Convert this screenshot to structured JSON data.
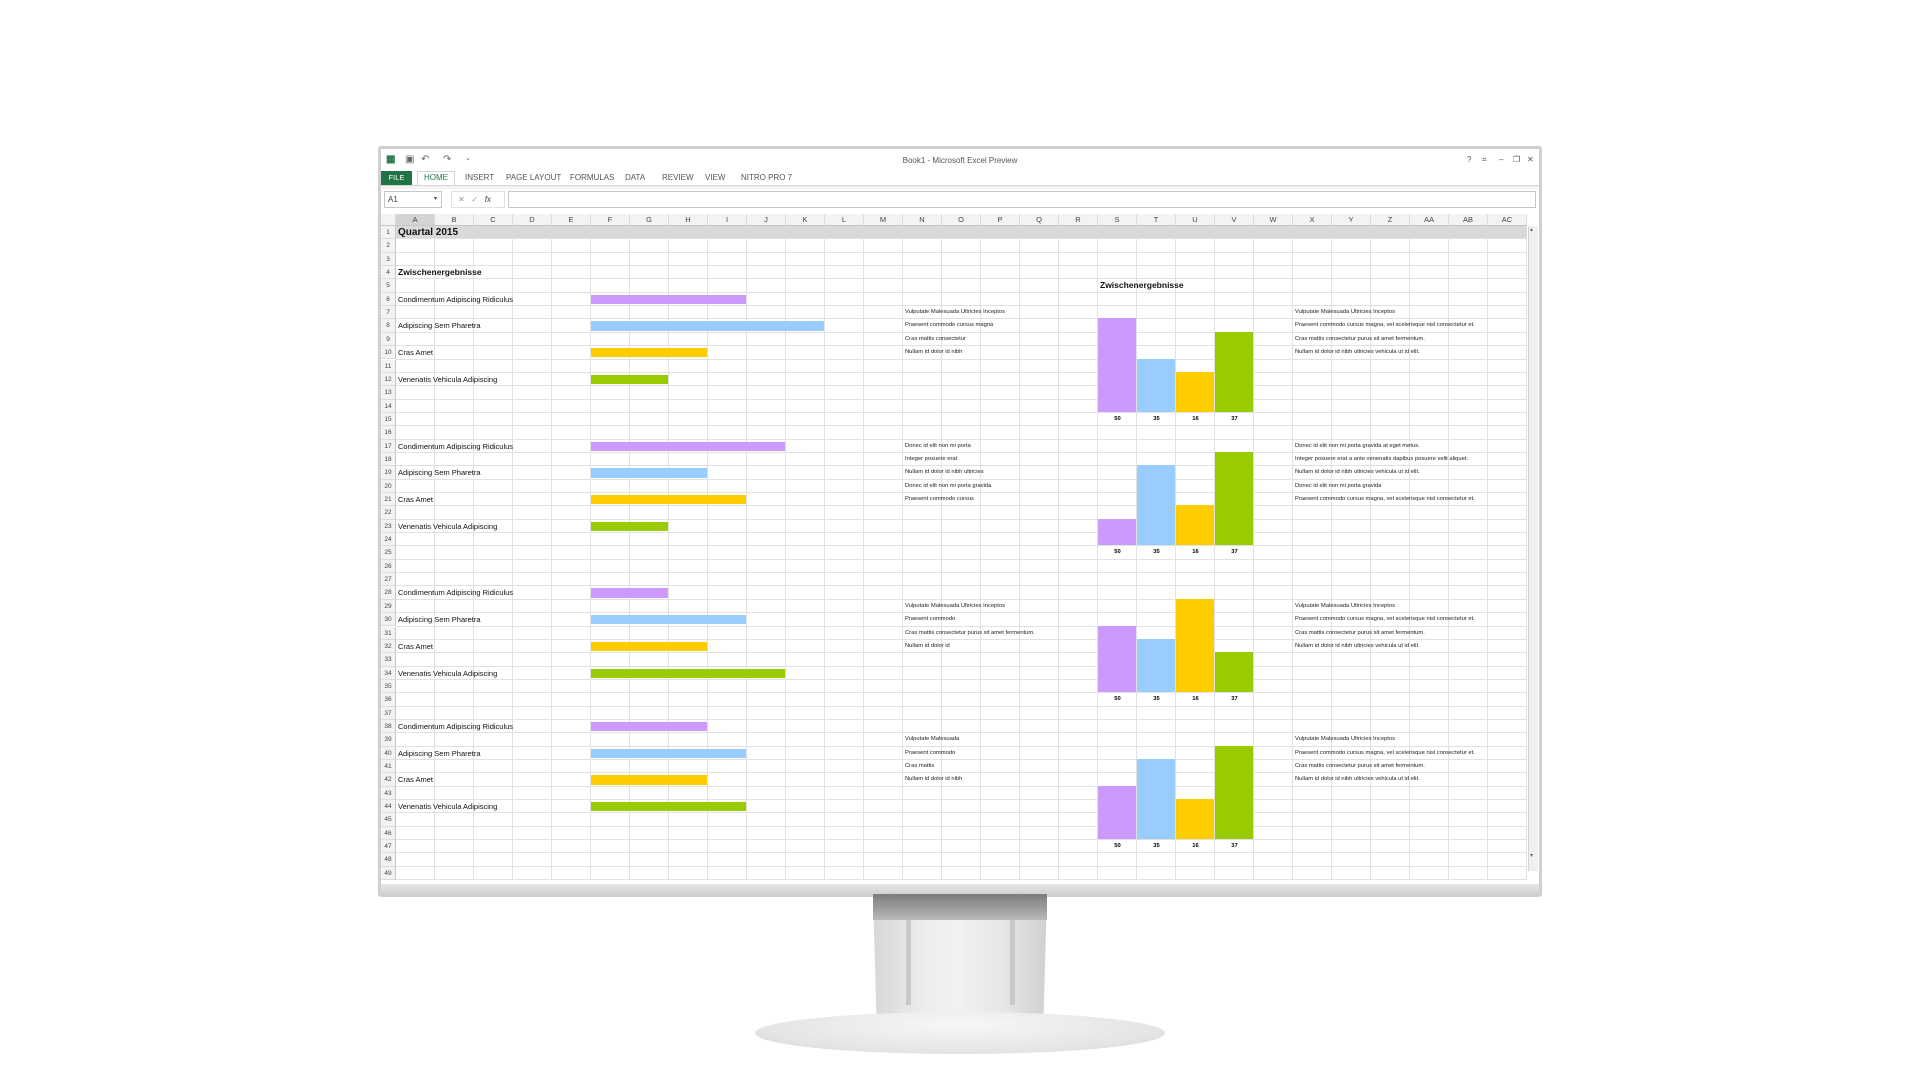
{
  "window": {
    "title": "Book1 - Microsoft Excel Preview",
    "controls": [
      "?",
      "⌗",
      "–",
      "❐",
      "✕"
    ]
  },
  "ribbon": {
    "tabs": [
      "FILE",
      "HOME",
      "INSERT",
      "PAGE LAYOUT",
      "FORMULAS",
      "DATA",
      "REVIEW",
      "VIEW",
      "NITRO PRO 7"
    ],
    "active": "HOME"
  },
  "formula_bar": {
    "name_box": "A1",
    "fx": "fx",
    "value": ""
  },
  "columns": [
    "A",
    "B",
    "C",
    "D",
    "E",
    "F",
    "G",
    "H",
    "I",
    "J",
    "K",
    "L",
    "M",
    "N",
    "O",
    "P",
    "Q",
    "R",
    "S",
    "T",
    "U",
    "V",
    "W",
    "X",
    "Y",
    "Z",
    "AA",
    "AB",
    "AC"
  ],
  "row_count": 49,
  "colors": {
    "purple": "#cc99ff",
    "blue": "#99ccff",
    "yellow": "#ffcc00",
    "green": "#99cc00",
    "accent": "#217346"
  },
  "sheet": {
    "title": "Quartal 2015",
    "section": "Zwischenergebnisse",
    "chart_title": "Zwischenergebnisse"
  },
  "bar_blocks": [
    {
      "rows": [
        6,
        8,
        10,
        12
      ],
      "labels": [
        "Condimentum Adipiscing Ridiculus",
        "Adipiscing Sem Pharetra",
        "Cras Amet",
        "Venenatis Vehicula Adipiscing"
      ],
      "lengths": [
        4,
        6,
        3,
        2
      ]
    },
    {
      "rows": [
        17,
        19,
        21,
        23
      ],
      "labels": [
        "Condimentum Adipiscing Ridiculus",
        "Adipiscing Sem Pharetra",
        "Cras Amet",
        "Venenatis Vehicula Adipiscing"
      ],
      "lengths": [
        5,
        3,
        4,
        2
      ]
    },
    {
      "rows": [
        28,
        30,
        32,
        34
      ],
      "labels": [
        "Condimentum Adipiscing Ridiculus",
        "Adipiscing Sem Pharetra",
        "Cras Amet",
        "Venenatis Vehicula Adipiscing"
      ],
      "lengths": [
        2,
        4,
        3,
        5
      ]
    },
    {
      "rows": [
        38,
        40,
        42,
        44
      ],
      "labels": [
        "Condimentum Adipiscing Ridiculus",
        "Adipiscing Sem Pharetra",
        "Cras Amet",
        "Venenatis Vehicula Adipiscing"
      ],
      "lengths": [
        3,
        4,
        3,
        4
      ]
    }
  ],
  "notes": [
    {
      "start_row": 7,
      "mid": [
        "Vulputate Malesuada Ultricies Inceptos",
        "Praesent commodo cursus magna",
        "Cras mattis consectetur",
        "Nullam id dolor id nibh"
      ],
      "right": [
        "Vulputate Malesuada Ultricies Inceptos",
        "Praesent commodo cursus magna, vel scelerisque nisl consectetur et.",
        "Cras mattis consectetur purus sit amet fermentum.",
        "Nullam id dolor id nibh ultricies vehicula ut id elit."
      ]
    },
    {
      "start_row": 17,
      "mid": [
        "Donec id elit non mi porta",
        "Integer posuere erat",
        "Nullam id dolor id nibh ultricies",
        "Donec id elit non mi porta gravida",
        "Praesent commodo cursus"
      ],
      "right": [
        "Donec id elit non mi porta gravida at eget metus.",
        "Integer posuere erat a ante venenatis dapibus posuere velit aliquet.",
        "Nullam id dolor id nibh ultricies vehicula ut id elit.",
        "Donec id elit non mi porta gravida",
        "Praesent commodo cursus magna, vel scelerisque nisl consectetur et."
      ]
    },
    {
      "start_row": 29,
      "mid": [
        "Vulputate Malesuada Ultricies Inceptos",
        "Praesent commodo",
        "Cras mattis consectetur purus sit amet fermentum.",
        "Nullam id dolor id"
      ],
      "right": [
        "Vulputate Malesuada Ultricies Inceptos",
        "Praesent commodo cursus magna, vel scelerisque nisl consectetur et.",
        "Cras mattis consectetur purus sit amet fermentum.",
        "Nullam id dolor id nibh ultricies vehicula ut id elit."
      ]
    },
    {
      "start_row": 39,
      "mid": [
        "Vulputate Malesuada",
        "Praesent commodo",
        "Cras mattis",
        "Nullam id dolor id nibh"
      ],
      "right": [
        "Vulputate Malesuada Ultricies Inceptos",
        "Praesent commodo cursus magna, vel scelerisque nisl consectetur et.",
        "Cras mattis consectetur purus sit amet fermentum.",
        "Nullam id dolor id nibh ultricies vehicula ut id elit."
      ]
    }
  ],
  "chart_data": [
    {
      "type": "bar",
      "title": "Zwischenergebnisse",
      "categories": [
        "50",
        "35",
        "16",
        "37"
      ],
      "values": [
        7,
        4,
        3,
        6
      ],
      "base_row": 14
    },
    {
      "type": "bar",
      "title": "",
      "categories": [
        "50",
        "35",
        "16",
        "37"
      ],
      "values": [
        2,
        6,
        3,
        7
      ],
      "base_row": 24
    },
    {
      "type": "bar",
      "title": "",
      "categories": [
        "50",
        "35",
        "16",
        "37"
      ],
      "values": [
        5,
        4,
        7,
        3
      ],
      "base_row": 35
    },
    {
      "type": "bar",
      "title": "",
      "categories": [
        "50",
        "35",
        "16",
        "37"
      ],
      "values": [
        4,
        6,
        3,
        7
      ],
      "base_row": 46
    }
  ]
}
